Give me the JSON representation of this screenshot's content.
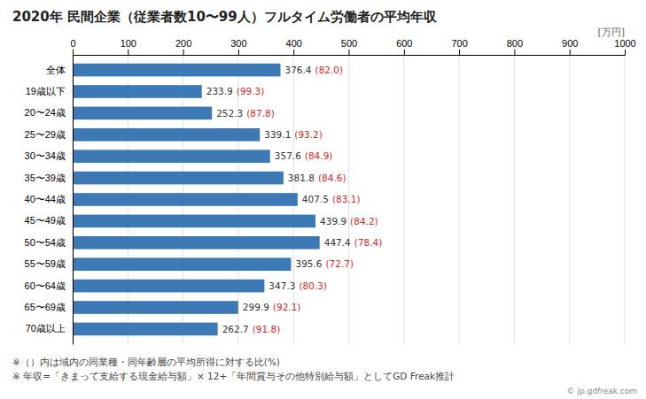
{
  "chart_data": {
    "type": "bar",
    "orientation": "horizontal",
    "title": "2020年 民間企業（従業者数10〜99人）フルタイム労働者の平均年収",
    "xlabel": "[万円]",
    "categories": [
      "全体",
      "19歳以下",
      "20〜24歳",
      "25〜29歳",
      "30〜34歳",
      "35〜39歳",
      "40〜44歳",
      "45〜49歳",
      "50〜54歳",
      "55〜59歳",
      "60〜64歳",
      "65〜69歳",
      "70歳以上"
    ],
    "values": [
      376.4,
      233.9,
      252.3,
      339.1,
      357.6,
      381.8,
      407.5,
      439.9,
      447.4,
      395.6,
      347.3,
      299.9,
      262.7
    ],
    "ratios": [
      82.0,
      99.3,
      87.8,
      93.2,
      84.9,
      84.6,
      83.1,
      84.2,
      78.4,
      72.7,
      80.3,
      92.1,
      91.8
    ],
    "ratio_labels": [
      "(82.0)",
      "(99.3)",
      "(87.8)",
      "(93.2)",
      "(84.9)",
      "(84.6)",
      "(83.1)",
      "(84.2)",
      "(78.4)",
      "(72.7)",
      "(80.3)",
      "(92.1)",
      "(91.8)"
    ],
    "color": "#3d7ab5",
    "xlim": [
      0,
      1000
    ],
    "xticks": [
      0,
      100,
      200,
      300,
      400,
      500,
      600,
      700,
      800,
      900,
      1000
    ],
    "grid": true,
    "data_labels": true,
    "annotations": [
      "※（）内は域内の同業種・同年齢層の平均所得に対する比(%)",
      "※ 年収=「きまって支給する現金給与額」× 12+「年間賞与その他特別給与額」としてGD Freak推計",
      "© jp.gdfreak.com"
    ]
  }
}
